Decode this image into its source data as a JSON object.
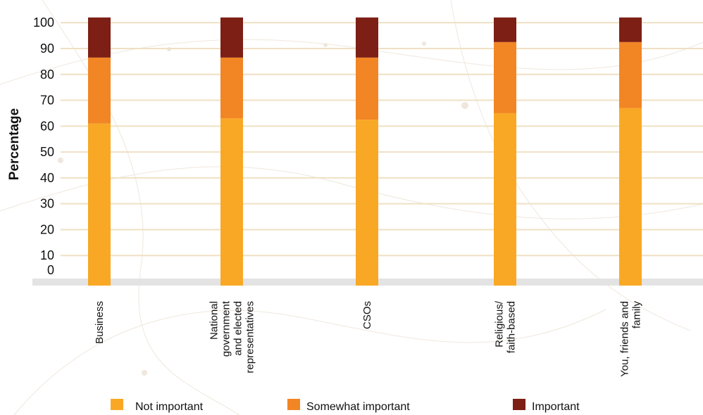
{
  "chart_data": {
    "type": "bar",
    "stacked": true,
    "ylabel": "Percentage",
    "xlabel": "",
    "ylim": [
      0,
      100
    ],
    "yticks": [
      0,
      10,
      20,
      30,
      40,
      50,
      60,
      70,
      80,
      90,
      100
    ],
    "grid": true,
    "legend_position": "bottom",
    "categories": [
      [
        "Business"
      ],
      [
        "National",
        "government",
        "and elected",
        "representatives"
      ],
      [
        "CSOs"
      ],
      [
        "Religious/",
        "faith-based"
      ],
      [
        "You, friends and",
        "family"
      ]
    ],
    "series": [
      {
        "name": "Not important",
        "color": "#f9a825",
        "values": [
          61,
          63,
          62.5,
          65,
          67
        ]
      },
      {
        "name": "Somewhat important",
        "color": "#f28524",
        "values": [
          25.5,
          23.5,
          24,
          27.5,
          25.5
        ]
      },
      {
        "name": "Important",
        "color": "#7d1f14",
        "values": [
          15.5,
          15.5,
          15.5,
          9.5,
          9.5
        ]
      }
    ],
    "colors": {
      "grid": "#efe0c3",
      "baseline_band": "#e3e3e3",
      "text": "#111111"
    }
  }
}
